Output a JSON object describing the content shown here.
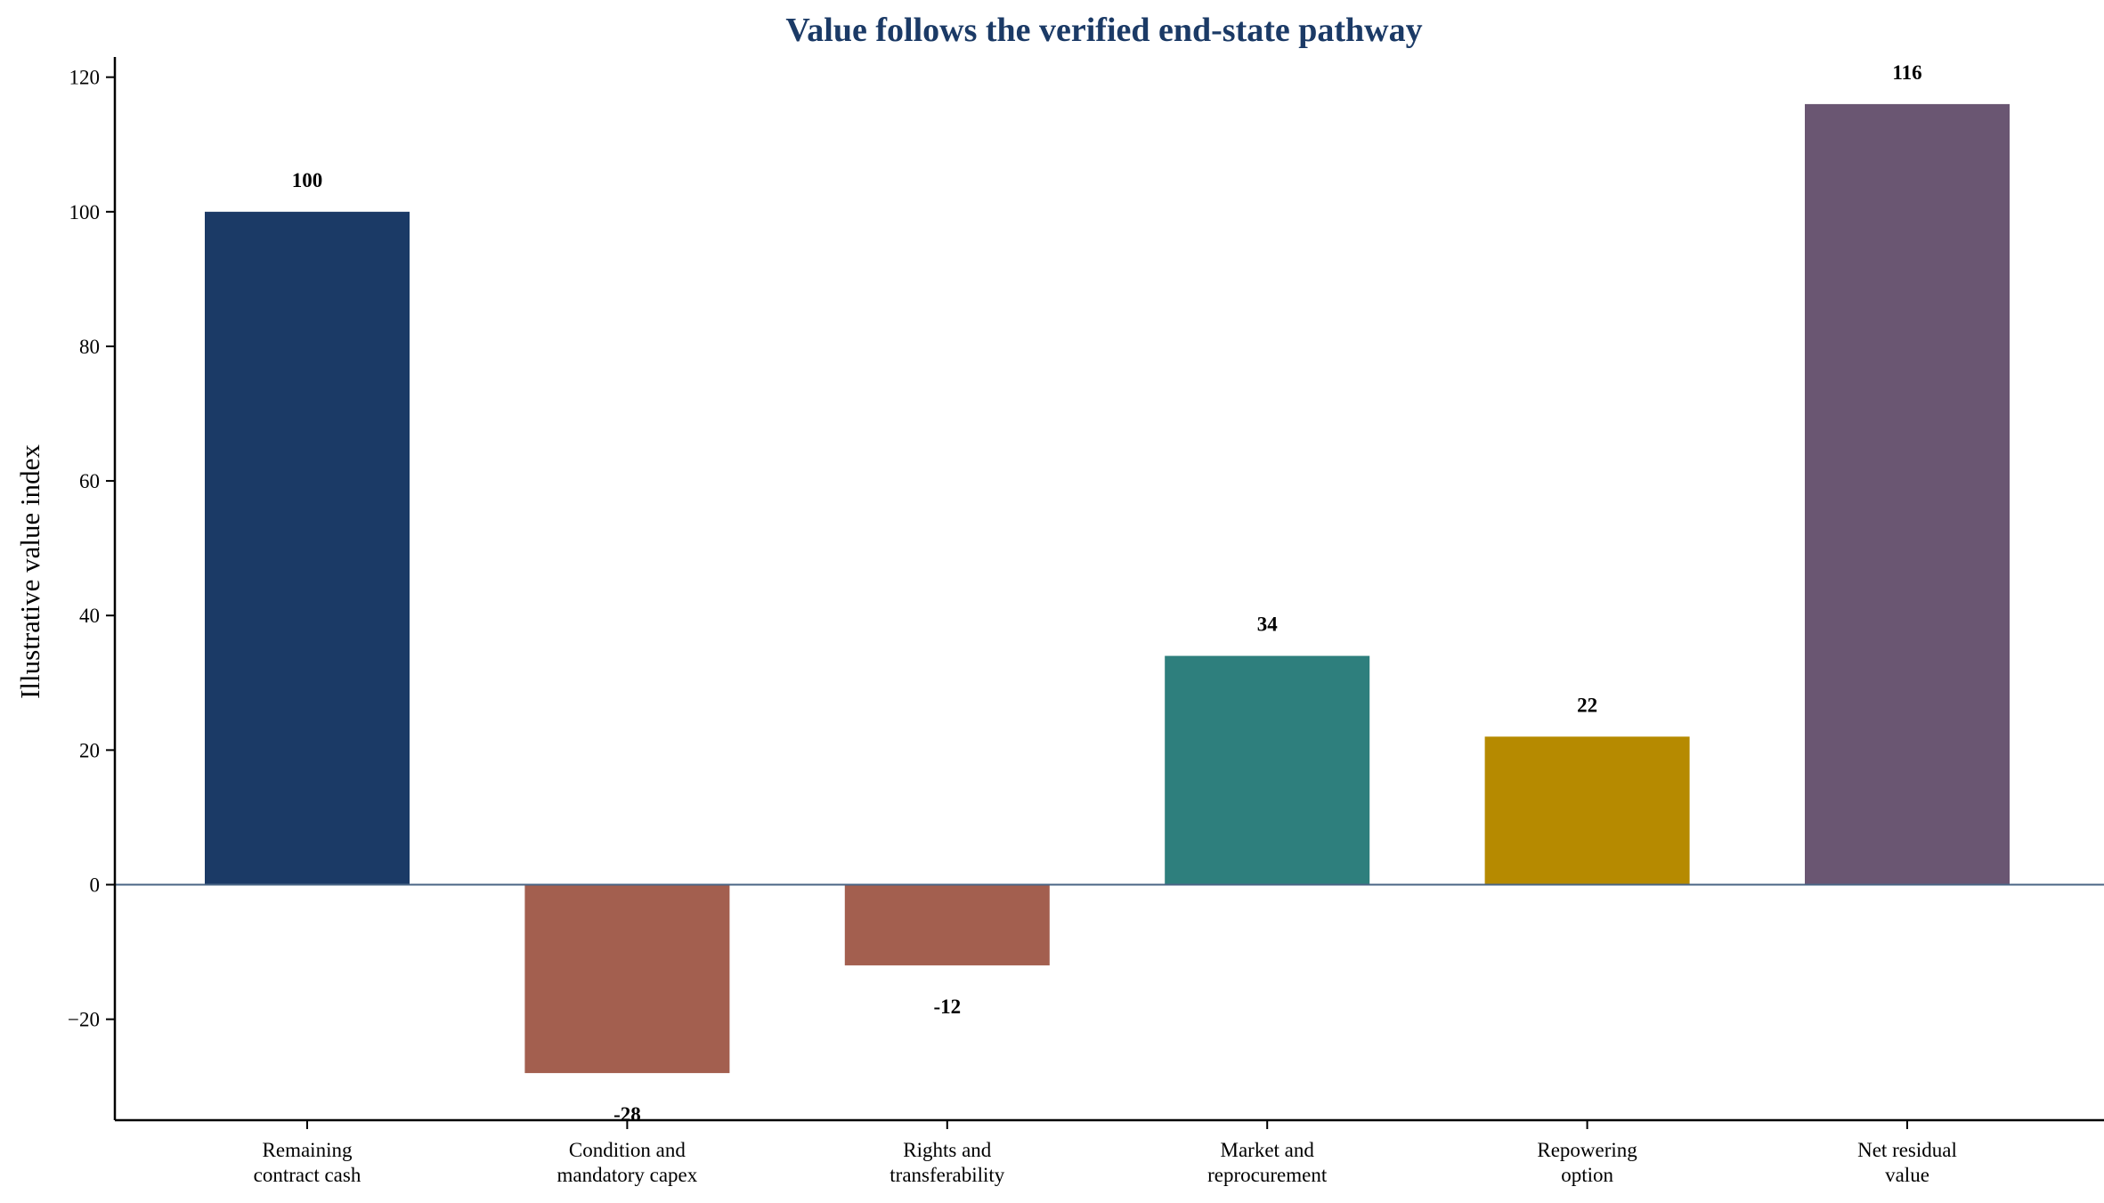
{
  "chart_data": {
    "type": "bar",
    "title": "Value follows the verified end-state pathway",
    "xlabel": "",
    "ylabel": "Illustrative value index",
    "categories": [
      [
        "Remaining",
        "contract cash"
      ],
      [
        "Condition and",
        "mandatory capex"
      ],
      [
        "Rights and",
        "transferability"
      ],
      [
        "Market and",
        "reprocurement"
      ],
      [
        "Repowering",
        "option"
      ],
      [
        "Net residual",
        "value"
      ]
    ],
    "values": [
      100,
      -28,
      -12,
      34,
      22,
      116
    ],
    "data_labels": [
      "100",
      "-28",
      "-12",
      "34",
      "22",
      "116"
    ],
    "colors": [
      "#1b3a66",
      "#a35f4f",
      "#a35f4f",
      "#2e7f7d",
      "#b68a00",
      "#6a5672"
    ],
    "ylim": [
      -35,
      123
    ],
    "yticks": [
      -20,
      0,
      20,
      40,
      60,
      80,
      100,
      120
    ],
    "ytick_labels": [
      "−20",
      "0",
      "20",
      "40",
      "60",
      "80",
      "100",
      "120"
    ],
    "grid": false,
    "zero_line_color": "#4a6585",
    "title_color": "#1b3a66"
  }
}
